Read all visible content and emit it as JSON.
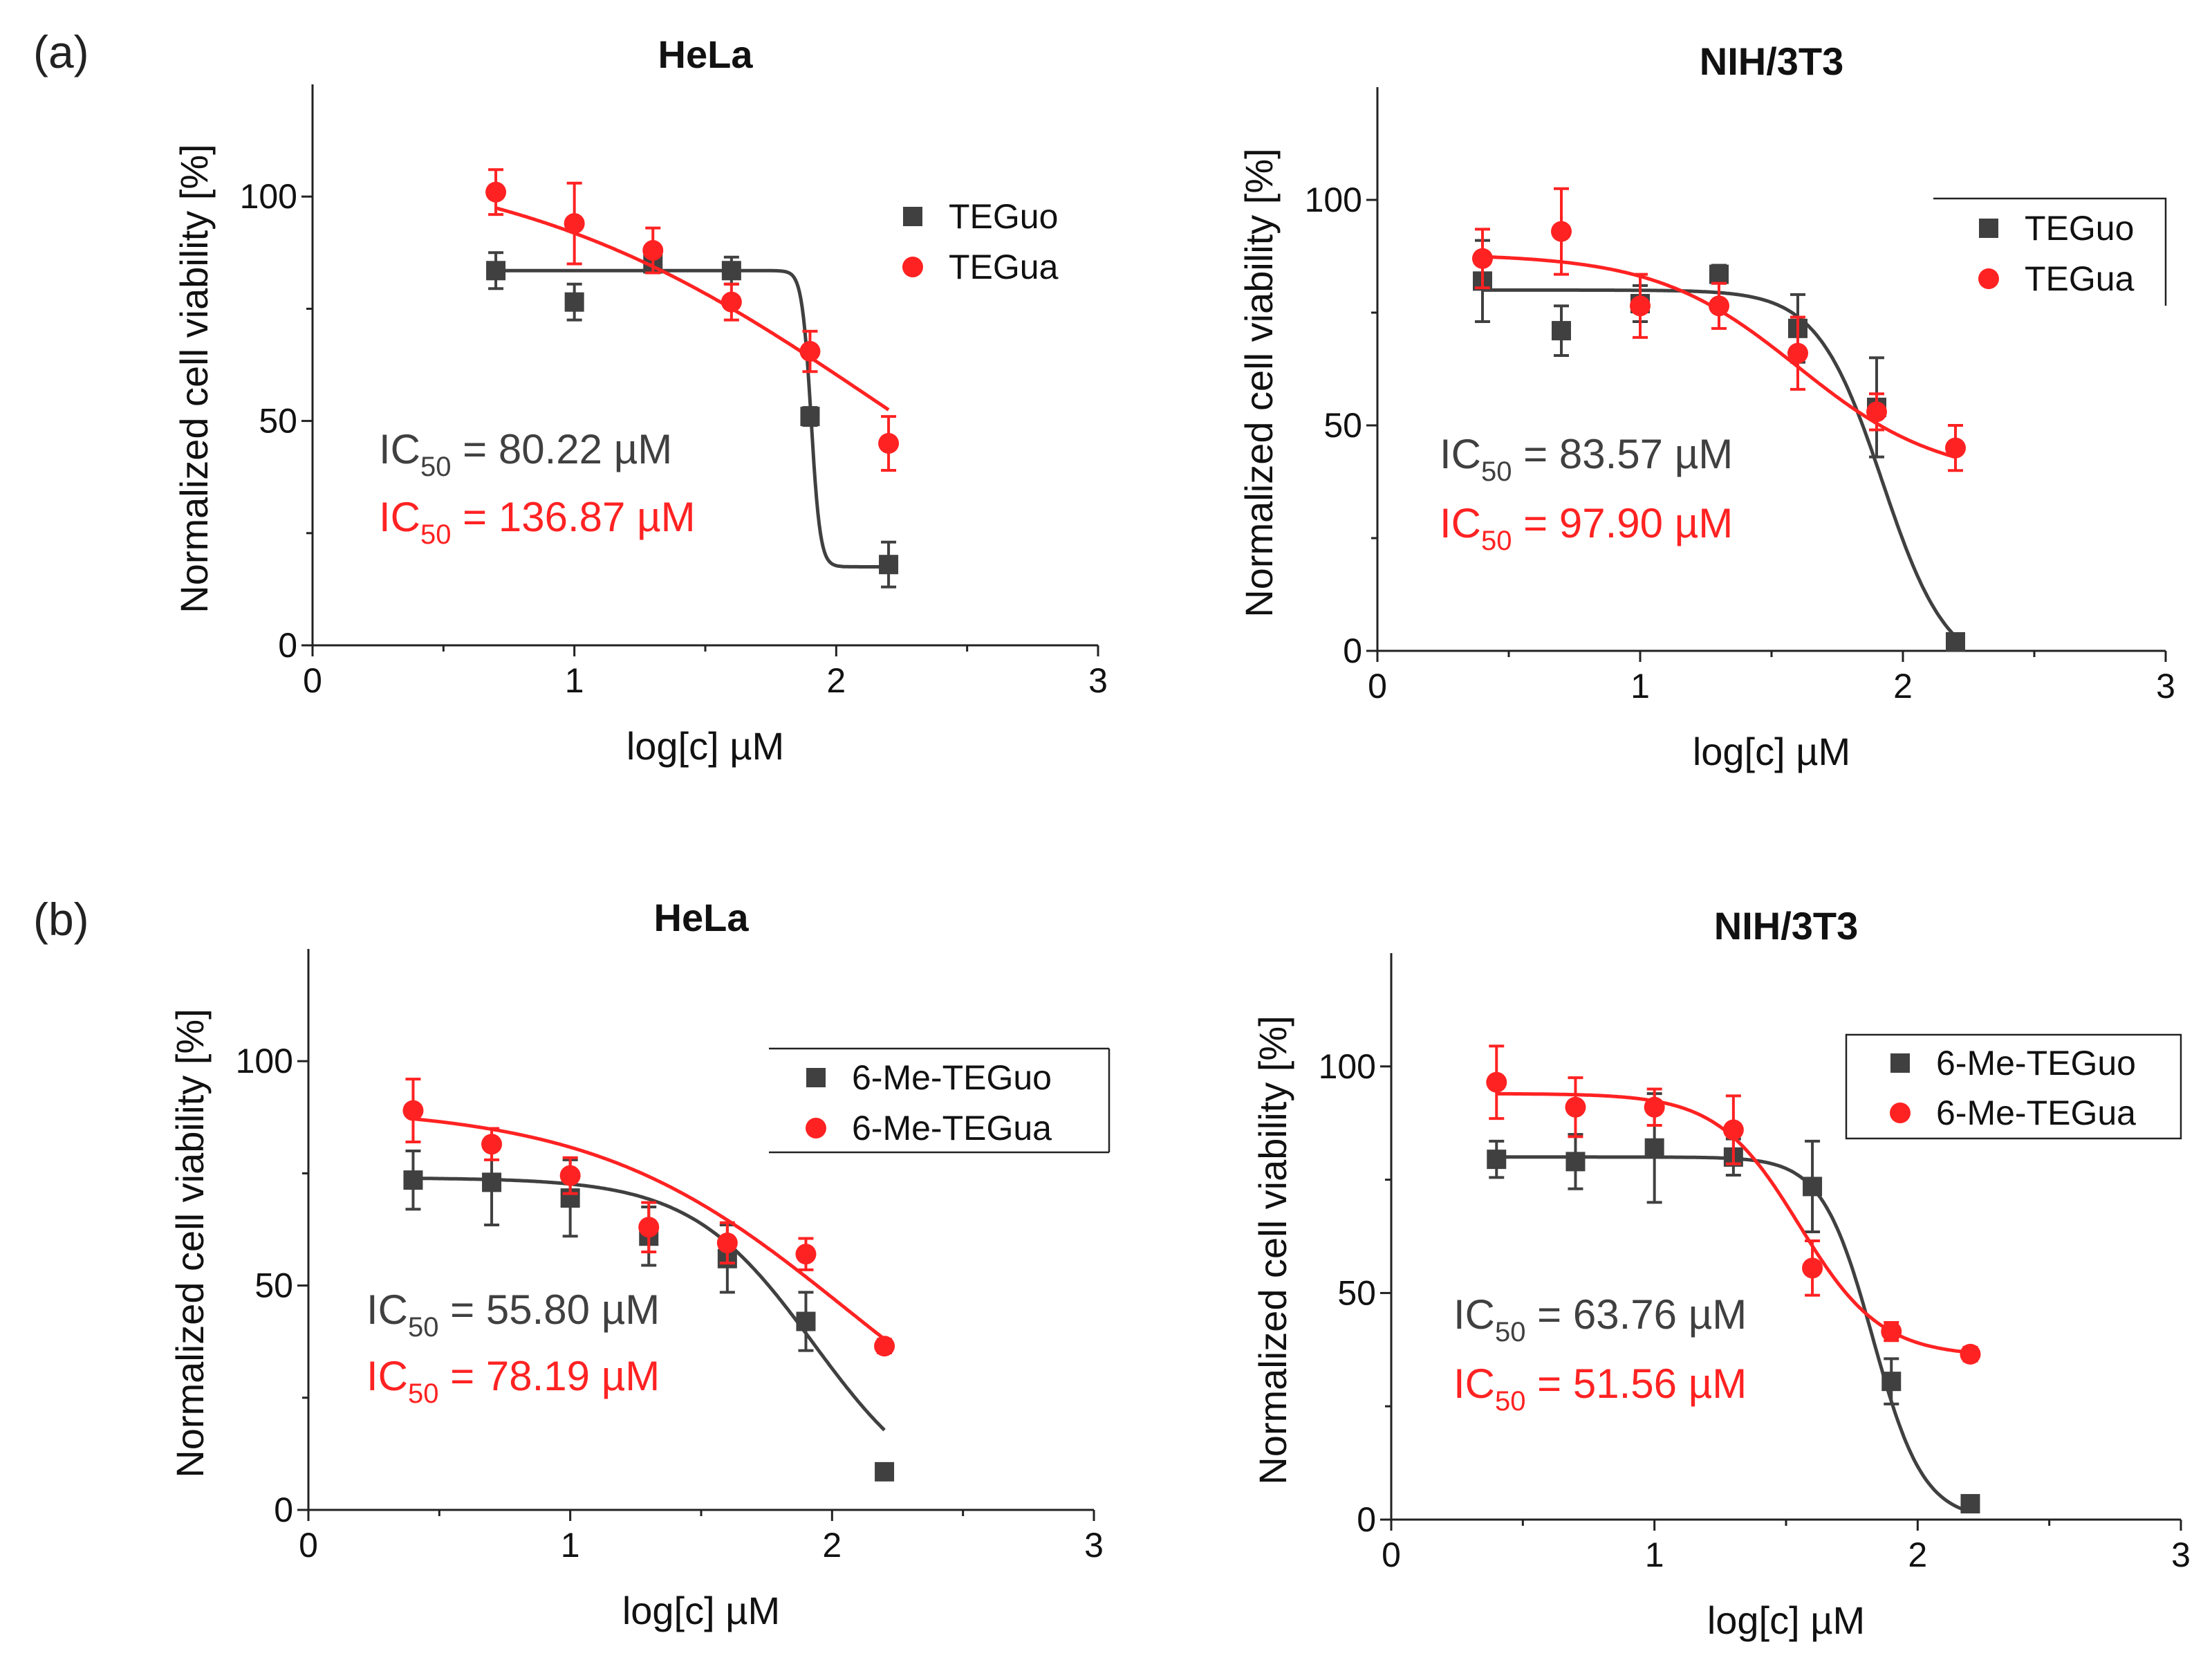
{
  "panel_labels": [
    "(a)",
    "(b)"
  ],
  "colors": {
    "teguo": "#404040",
    "tegua": "#ff2222"
  },
  "chart_data": [
    {
      "type": "scatter",
      "panel": "(a)",
      "title": "HeLa",
      "xlabel": "log[c] µM",
      "ylabel": "Normalized cell viability [%]",
      "xlim": [
        0,
        3
      ],
      "ylim": [
        0,
        125
      ],
      "xticks": [
        "0",
        "1",
        "2",
        "3"
      ],
      "yticks": [
        "0",
        "50",
        "100"
      ],
      "legend_position": "top-right",
      "series": [
        {
          "name": "TEGuo",
          "color": "#404040",
          "marker": "square",
          "x": [
            0.7,
            1.0,
            1.3,
            1.6,
            1.9,
            2.2
          ],
          "y": [
            83.5,
            76.5,
            85,
            83.5,
            51,
            18
          ],
          "err": [
            4,
            4,
            2,
            3,
            2,
            5
          ],
          "fit": {
            "top": 83.5,
            "bottom": 17.5,
            "logIC50": 1.904,
            "hill": 25
          },
          "ic50_label": "IC",
          "ic50_sub": "50",
          "ic50_value": " = 80.22 µM"
        },
        {
          "name": "TEGua",
          "color": "#ff2222",
          "marker": "circle",
          "x": [
            0.7,
            1.0,
            1.3,
            1.6,
            1.9,
            2.2
          ],
          "y": [
            101,
            94,
            88,
            76.5,
            65.5,
            45
          ],
          "err": [
            5,
            9,
            5,
            4,
            4.5,
            6
          ],
          "fit": {
            "top": 110,
            "bottom": 0,
            "logIC50": 2.136,
            "hill": 0.62
          },
          "ic50_label": "IC",
          "ic50_sub": "50",
          "ic50_value": " = 136.87 µM"
        }
      ]
    },
    {
      "type": "scatter",
      "panel": "(a)",
      "title": "NIH/3T3",
      "xlabel": "log[c] µM",
      "ylabel": "Normalized cell viability [%]",
      "xlim": [
        0,
        3
      ],
      "ylim": [
        0,
        125
      ],
      "xticks": [
        "0",
        "1",
        "2",
        "3"
      ],
      "yticks": [
        "0",
        "50",
        "100"
      ],
      "legend_position": "top-right",
      "series": [
        {
          "name": "TEGuo",
          "color": "#404040",
          "marker": "square",
          "x": [
            0.4,
            0.7,
            1.0,
            1.3,
            1.6,
            1.9,
            2.2
          ],
          "y": [
            82,
            71,
            77,
            83.5,
            71.5,
            54,
            2
          ],
          "err": [
            9,
            5.5,
            4,
            2,
            7.5,
            11,
            1.5
          ],
          "fit": {
            "top": 80,
            "bottom": -5,
            "logIC50": 1.922,
            "hill": 3.5
          },
          "ic50_label": "IC",
          "ic50_sub": "50",
          "ic50_value": " = 83.57 µM"
        },
        {
          "name": "TEGua",
          "color": "#ff2222",
          "marker": "circle",
          "x": [
            0.4,
            0.7,
            1.0,
            1.3,
            1.6,
            1.9,
            2.2
          ],
          "y": [
            87,
            93,
            76.5,
            76.5,
            66,
            53,
            45
          ],
          "err": [
            6.5,
            9.5,
            7,
            5,
            8,
            4,
            5
          ],
          "fit": {
            "top": 88,
            "bottom": 38,
            "logIC50": 1.6,
            "hill": 1.6
          },
          "ic50_label": "IC",
          "ic50_sub": "50",
          "ic50_value": " = 97.90 µM"
        }
      ]
    },
    {
      "type": "scatter",
      "panel": "(b)",
      "title": "HeLa",
      "xlabel": "log[c] µM",
      "ylabel": "Normalized cell viability [%]",
      "xlim": [
        0,
        3
      ],
      "ylim": [
        0,
        125
      ],
      "xticks": [
        "0",
        "1",
        "2",
        "3"
      ],
      "yticks": [
        "0",
        "50",
        "100"
      ],
      "legend_position": "top-right",
      "series": [
        {
          "name": "6-Me-TEGuo",
          "color": "#404040",
          "marker": "square",
          "x": [
            0.4,
            0.7,
            1.0,
            1.3,
            1.6,
            1.9,
            2.2
          ],
          "y": [
            73.5,
            73,
            69.5,
            61,
            56,
            42,
            8.5
          ],
          "err": [
            6.5,
            9.5,
            8.5,
            6.5,
            7.5,
            6.5,
            1.5
          ],
          "fit": {
            "top": 74,
            "bottom": 0,
            "logIC50": 1.93,
            "hill": 1.85
          },
          "ic50_label": "IC",
          "ic50_sub": "50",
          "ic50_value": " = 55.80 µM"
        },
        {
          "name": "6-Me-TEGua",
          "color": "#ff2222",
          "marker": "circle",
          "x": [
            0.4,
            0.7,
            1.0,
            1.3,
            1.6,
            1.9,
            2.2
          ],
          "y": [
            89,
            81.5,
            74.5,
            63,
            59.5,
            57,
            36.5
          ],
          "err": [
            7,
            3.5,
            4,
            5.5,
            4.5,
            3.5,
            1.5
          ],
          "fit": {
            "top": 90,
            "bottom": 0,
            "logIC50": 2.05,
            "hill": 0.9
          },
          "ic50_label": "IC",
          "ic50_sub": "50",
          "ic50_value": " = 78.19 µM"
        }
      ]
    },
    {
      "type": "scatter",
      "panel": "(b)",
      "title": "NIH/3T3",
      "xlabel": "log[c] µM",
      "ylabel": "Normalized cell viability [%]",
      "xlim": [
        0,
        3
      ],
      "ylim": [
        0,
        125
      ],
      "xticks": [
        "0",
        "1",
        "2",
        "3"
      ],
      "yticks": [
        "0",
        "50",
        "100"
      ],
      "legend_position": "top-right",
      "series": [
        {
          "name": "6-Me-TEGuo",
          "color": "#404040",
          "marker": "square",
          "x": [
            0.4,
            0.7,
            1.0,
            1.3,
            1.6,
            1.9,
            2.2
          ],
          "y": [
            79.5,
            79,
            82,
            80,
            73.5,
            30.5,
            3.5
          ],
          "err": [
            4,
            6,
            12,
            4,
            10,
            5,
            1.5
          ],
          "fit": {
            "top": 80,
            "bottom": 0,
            "logIC50": 1.83,
            "hill": 4.5
          },
          "ic50_label": "IC",
          "ic50_sub": "50",
          "ic50_value": " = 63.76 µM"
        },
        {
          "name": "6-Me-TEGua",
          "color": "#ff2222",
          "marker": "circle",
          "x": [
            0.4,
            0.7,
            1.0,
            1.3,
            1.6,
            1.9,
            2.2
          ],
          "y": [
            96.5,
            91,
            91,
            86,
            55.5,
            41.5,
            36.5
          ],
          "err": [
            8,
            6.5,
            4,
            7.5,
            6,
            2,
            1.5
          ],
          "fit": {
            "top": 94,
            "bottom": 36,
            "logIC50": 1.55,
            "hill": 2.8
          },
          "ic50_label": "IC",
          "ic50_sub": "50",
          "ic50_value": " = 51.56 µM"
        }
      ]
    }
  ]
}
